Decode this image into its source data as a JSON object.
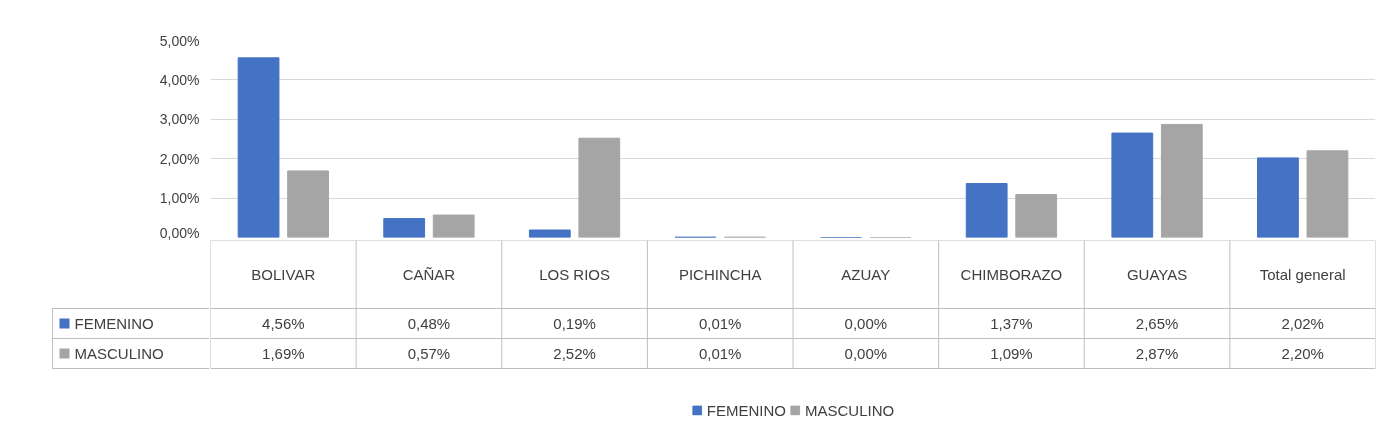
{
  "chart_data": {
    "type": "bar",
    "categories": [
      "BOLIVAR",
      "CAÑAR",
      "LOS RIOS",
      "PICHINCHA",
      "AZUAY",
      "CHIMBORAZO",
      "GUAYAS",
      "Total general"
    ],
    "series": [
      {
        "name": "FEMENINO",
        "color": "#4472c4",
        "values": [
          4.56,
          0.48,
          0.19,
          0.01,
          0.0,
          1.37,
          2.65,
          2.02
        ],
        "value_labels": [
          "4,56%",
          "0,48%",
          "0,19%",
          "0,01%",
          "0,00%",
          "1,37%",
          "2,65%",
          "2,02%"
        ]
      },
      {
        "name": "MASCULINO",
        "color": "#a5a5a5",
        "values": [
          1.69,
          0.57,
          2.52,
          0.01,
          0.0,
          1.09,
          2.87,
          2.2
        ],
        "value_labels": [
          "1,69%",
          "0,57%",
          "2,52%",
          "0,01%",
          "0,00%",
          "1,09%",
          "2,87%",
          "2,20%"
        ]
      }
    ],
    "ylim": [
      0,
      5
    ],
    "yticks": [
      {
        "value": 0,
        "label": "0,00%"
      },
      {
        "value": 1,
        "label": "1,00%"
      },
      {
        "value": 2,
        "label": "2,00%"
      },
      {
        "value": 3,
        "label": "3,00%"
      },
      {
        "value": 4,
        "label": "4,00%"
      },
      {
        "value": 5,
        "label": "5,00%"
      }
    ],
    "grid": "y",
    "legend": "bottom"
  }
}
